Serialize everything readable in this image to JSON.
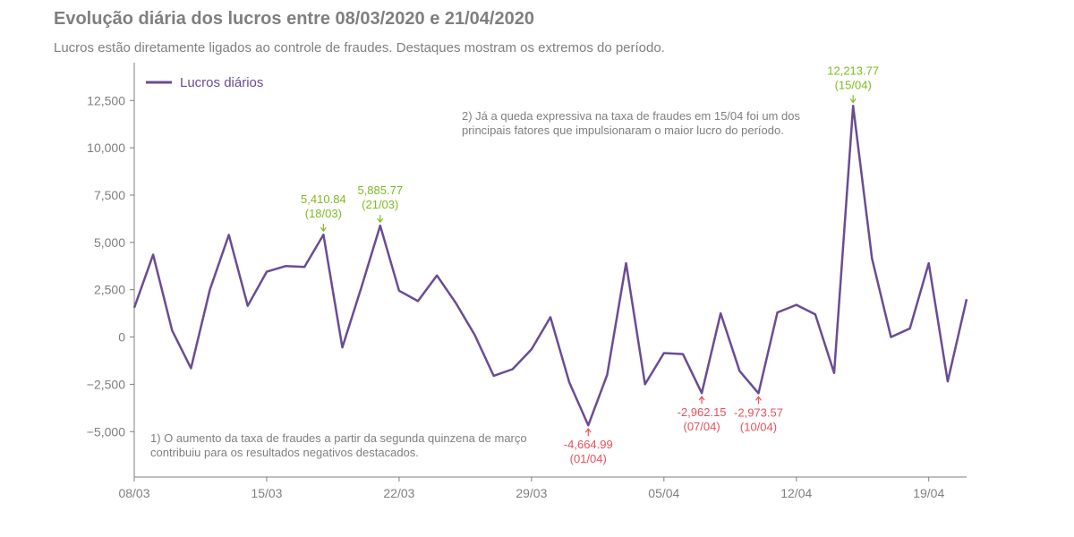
{
  "title": "Evolução diária dos lucros entre 08/03/2020 e 21/04/2020",
  "subtitle": "Lucros estão diretamente ligados ao controle de fraudes. Destaques mostram os extremos do período.",
  "chart_data": {
    "type": "line",
    "title": "Evolução diária dos lucros entre 08/03/2020 e 21/04/2020",
    "subtitle": "Lucros estão diretamente ligados ao controle de fraudes. Destaques mostram os extremos do período.",
    "xlabel": "",
    "ylabel": "",
    "x_start": "08/03",
    "x": [
      "08/03",
      "09/03",
      "10/03",
      "11/03",
      "12/03",
      "13/03",
      "14/03",
      "15/03",
      "16/03",
      "17/03",
      "18/03",
      "19/03",
      "20/03",
      "21/03",
      "22/03",
      "23/03",
      "24/03",
      "25/03",
      "26/03",
      "27/03",
      "28/03",
      "29/03",
      "30/03",
      "31/03",
      "01/04",
      "02/04",
      "03/04",
      "04/04",
      "05/04",
      "06/04",
      "07/04",
      "08/04",
      "09/04",
      "10/04",
      "11/04",
      "12/04",
      "13/04",
      "14/04",
      "15/04",
      "16/04",
      "17/04",
      "18/04",
      "19/04",
      "20/04",
      "21/04"
    ],
    "xticks": [
      "08/03",
      "15/03",
      "22/03",
      "29/03",
      "05/04",
      "12/04",
      "19/04"
    ],
    "xtick_index": [
      0,
      7,
      14,
      21,
      28,
      35,
      42
    ],
    "yticks": [
      -5000,
      -2500,
      0,
      2500,
      5000,
      7500,
      10000,
      12500
    ],
    "ytick_labels": [
      "−5,000",
      "−2,500",
      "0",
      "2,500",
      "5,000",
      "7,500",
      "10,000",
      "12,500"
    ],
    "ylim": [
      -7400,
      14500
    ],
    "grid": false,
    "legend_position": "top-left",
    "colors": {
      "line": "#6a4c93",
      "positive": "#7dbb1f",
      "negative": "#e8505b",
      "text": "#7f7f7f"
    },
    "series": [
      {
        "name": "Lucros diários",
        "values": [
          1550,
          4350,
          350,
          -1650,
          2500,
          5400,
          1650,
          3450,
          3750,
          3700,
          5410.84,
          -550,
          2600,
          5885.77,
          2450,
          1900,
          3250,
          1800,
          100,
          -2050,
          -1700,
          -650,
          1050,
          -2400,
          -4664.99,
          -2000,
          3900,
          -2500,
          -850,
          -900,
          -2962.15,
          1250,
          -1800,
          -2973.57,
          1300,
          1700,
          1200,
          -1900,
          12213.77,
          4150,
          0,
          450,
          3900,
          -2350,
          2000
        ]
      }
    ],
    "highlights": [
      {
        "index": 10,
        "value_label": "5,410.84",
        "date_label": "(18/03)",
        "kind": "positive",
        "position": "above"
      },
      {
        "index": 13,
        "value_label": "5,885.77",
        "date_label": "(21/03)",
        "kind": "positive",
        "position": "above"
      },
      {
        "index": 38,
        "value_label": "12,213.77",
        "date_label": "(15/04)",
        "kind": "positive",
        "position": "above"
      },
      {
        "index": 24,
        "value_label": "-4,664.99",
        "date_label": "(01/04)",
        "kind": "negative",
        "position": "below"
      },
      {
        "index": 30,
        "value_label": "-2,962.15",
        "date_label": "(07/04)",
        "kind": "negative",
        "position": "below"
      },
      {
        "index": 33,
        "value_label": "-2,973.57",
        "date_label": "(10/04)",
        "kind": "negative",
        "position": "below"
      }
    ],
    "notes": [
      {
        "lines": [
          "2) Já a queda expressiva na taxa de fraudes em 15/04 foi um dos",
          "principais fatores que impulsionaram o maior lucro do período."
        ]
      },
      {
        "lines": [
          "1) O aumento da taxa de fraudes a partir da segunda quinzena de março",
          "contribuiu para os resultados negativos destacados."
        ]
      }
    ]
  }
}
